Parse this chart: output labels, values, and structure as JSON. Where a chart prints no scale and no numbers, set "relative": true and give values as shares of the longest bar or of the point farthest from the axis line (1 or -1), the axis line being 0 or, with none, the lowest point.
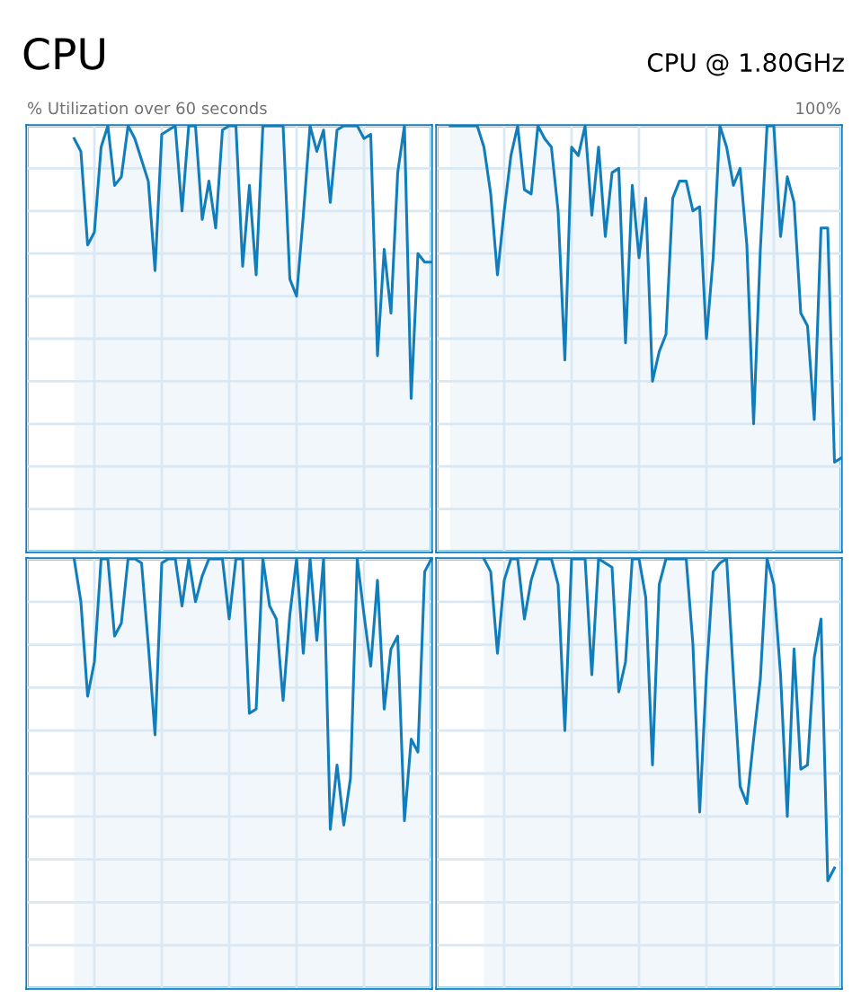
{
  "chart_data": [
    {
      "type": "area",
      "title": "CPU",
      "annotations": [
        "% Utilization over 60 seconds"
      ],
      "relative": true,
      "grid": true,
      "tick_labels": false,
      "categories": [
        null,
        null,
        null,
        null,
        null,
        null,
        null,
        null,
        null,
        null,
        null,
        null,
        null,
        null,
        null,
        null,
        null,
        null,
        null,
        null,
        null,
        null,
        null,
        null,
        null,
        null,
        null,
        null,
        null,
        null,
        null,
        null,
        null,
        null,
        null,
        null,
        null,
        null,
        null,
        null,
        null,
        null,
        null,
        null,
        null,
        null,
        null,
        null,
        null,
        null,
        null,
        null,
        null,
        null,
        null,
        null,
        null,
        null,
        null,
        null,
        null
      ],
      "series": [
        {
          "color": "#117dbb",
          "values": [
            null,
            null,
            null,
            null,
            null,
            null,
            null,
            0.97,
            0.94,
            0.72,
            0.75,
            0.95,
            1,
            0.86,
            0.88,
            1,
            0.97,
            0.92,
            0.87,
            0.66,
            0.98,
            0.99,
            1,
            0.8,
            1,
            1,
            0.78,
            0.87,
            0.76,
            0.99,
            1,
            1,
            0.67,
            0.86,
            0.65,
            1,
            1,
            1,
            1,
            0.64,
            0.6,
            0.79,
            1,
            0.94,
            0.99,
            0.82,
            0.99,
            1,
            1,
            1,
            0.97,
            0.98,
            0.46,
            0.71,
            0.56,
            0.89,
            1,
            0.36,
            0.7,
            0.68,
            0.68
          ]
        }
      ]
    },
    {
      "type": "area",
      "subtitle": "CPU @ 1.80GHz",
      "annotations": [
        "100%"
      ],
      "relative": true,
      "grid": true,
      "tick_labels": false,
      "categories": [
        null,
        null,
        null,
        null,
        null,
        null,
        null,
        null,
        null,
        null,
        null,
        null,
        null,
        null,
        null,
        null,
        null,
        null,
        null,
        null,
        null,
        null,
        null,
        null,
        null,
        null,
        null,
        null,
        null,
        null,
        null,
        null,
        null,
        null,
        null,
        null,
        null,
        null,
        null,
        null,
        null,
        null,
        null,
        null,
        null,
        null,
        null,
        null,
        null,
        null,
        null,
        null,
        null,
        null,
        null,
        null,
        null,
        null,
        null,
        null,
        null
      ],
      "series": [
        {
          "color": "#117dbb",
          "values": [
            null,
            null,
            1,
            1,
            1,
            1,
            1,
            0.95,
            0.84,
            0.65,
            0.8,
            0.93,
            1,
            0.85,
            0.84,
            1,
            0.97,
            0.95,
            0.8,
            0.45,
            0.95,
            0.93,
            1,
            0.79,
            0.95,
            0.74,
            0.89,
            0.9,
            0.49,
            0.86,
            0.69,
            0.83,
            0.4,
            0.47,
            0.51,
            0.83,
            0.87,
            0.87,
            0.8,
            0.81,
            0.5,
            0.69,
            1,
            0.95,
            0.86,
            0.9,
            0.72,
            0.3,
            0.71,
            1,
            1,
            0.74,
            0.88,
            0.82,
            0.56,
            0.53,
            0.31,
            0.76,
            0.76,
            0.21,
            0.22
          ]
        }
      ]
    },
    {
      "type": "area",
      "relative": true,
      "grid": true,
      "tick_labels": false,
      "categories": [
        null,
        null,
        null,
        null,
        null,
        null,
        null,
        null,
        null,
        null,
        null,
        null,
        null,
        null,
        null,
        null,
        null,
        null,
        null,
        null,
        null,
        null,
        null,
        null,
        null,
        null,
        null,
        null,
        null,
        null,
        null,
        null,
        null,
        null,
        null,
        null,
        null,
        null,
        null,
        null,
        null,
        null,
        null,
        null,
        null,
        null,
        null,
        null,
        null,
        null,
        null,
        null,
        null,
        null,
        null,
        null,
        null,
        null,
        null,
        null,
        null
      ],
      "series": [
        {
          "color": "#117dbb",
          "values": [
            null,
            null,
            null,
            null,
            null,
            null,
            null,
            1,
            0.9,
            0.68,
            0.76,
            1,
            1,
            0.82,
            0.85,
            1,
            1,
            0.99,
            0.8,
            0.59,
            0.99,
            1,
            1,
            0.89,
            1,
            0.9,
            0.96,
            1,
            1,
            1,
            0.86,
            1,
            1,
            0.64,
            0.65,
            1,
            0.89,
            0.86,
            0.67,
            0.87,
            1,
            0.78,
            1,
            0.81,
            1,
            0.37,
            0.52,
            0.38,
            0.49,
            1,
            0.87,
            0.75,
            0.95,
            0.65,
            0.79,
            0.82,
            0.39,
            0.58,
            0.55,
            0.97,
            1
          ]
        }
      ]
    },
    {
      "type": "area",
      "relative": true,
      "grid": true,
      "tick_labels": false,
      "categories": [
        null,
        null,
        null,
        null,
        null,
        null,
        null,
        null,
        null,
        null,
        null,
        null,
        null,
        null,
        null,
        null,
        null,
        null,
        null,
        null,
        null,
        null,
        null,
        null,
        null,
        null,
        null,
        null,
        null,
        null,
        null,
        null,
        null,
        null,
        null,
        null,
        null,
        null,
        null,
        null,
        null,
        null,
        null,
        null,
        null,
        null,
        null,
        null,
        null,
        null,
        null,
        null,
        null,
        null,
        null,
        null,
        null,
        null,
        null,
        null,
        null
      ],
      "series": [
        {
          "color": "#117dbb",
          "values": [
            null,
            null,
            null,
            null,
            null,
            null,
            null,
            1,
            0.97,
            0.78,
            0.95,
            1,
            1,
            0.86,
            0.95,
            1,
            1,
            1,
            0.94,
            0.6,
            1,
            1,
            1,
            0.73,
            1,
            0.99,
            0.98,
            0.69,
            0.76,
            1,
            1,
            0.91,
            0.52,
            0.94,
            1,
            1,
            1,
            1,
            0.8,
            0.41,
            0.73,
            0.97,
            0.99,
            1,
            0.73,
            0.47,
            0.43,
            0.58,
            0.72,
            1,
            0.94,
            0.73,
            0.4,
            0.79,
            0.51,
            0.52,
            0.77,
            0.86,
            0.25,
            0.28,
            null
          ]
        }
      ]
    }
  ]
}
